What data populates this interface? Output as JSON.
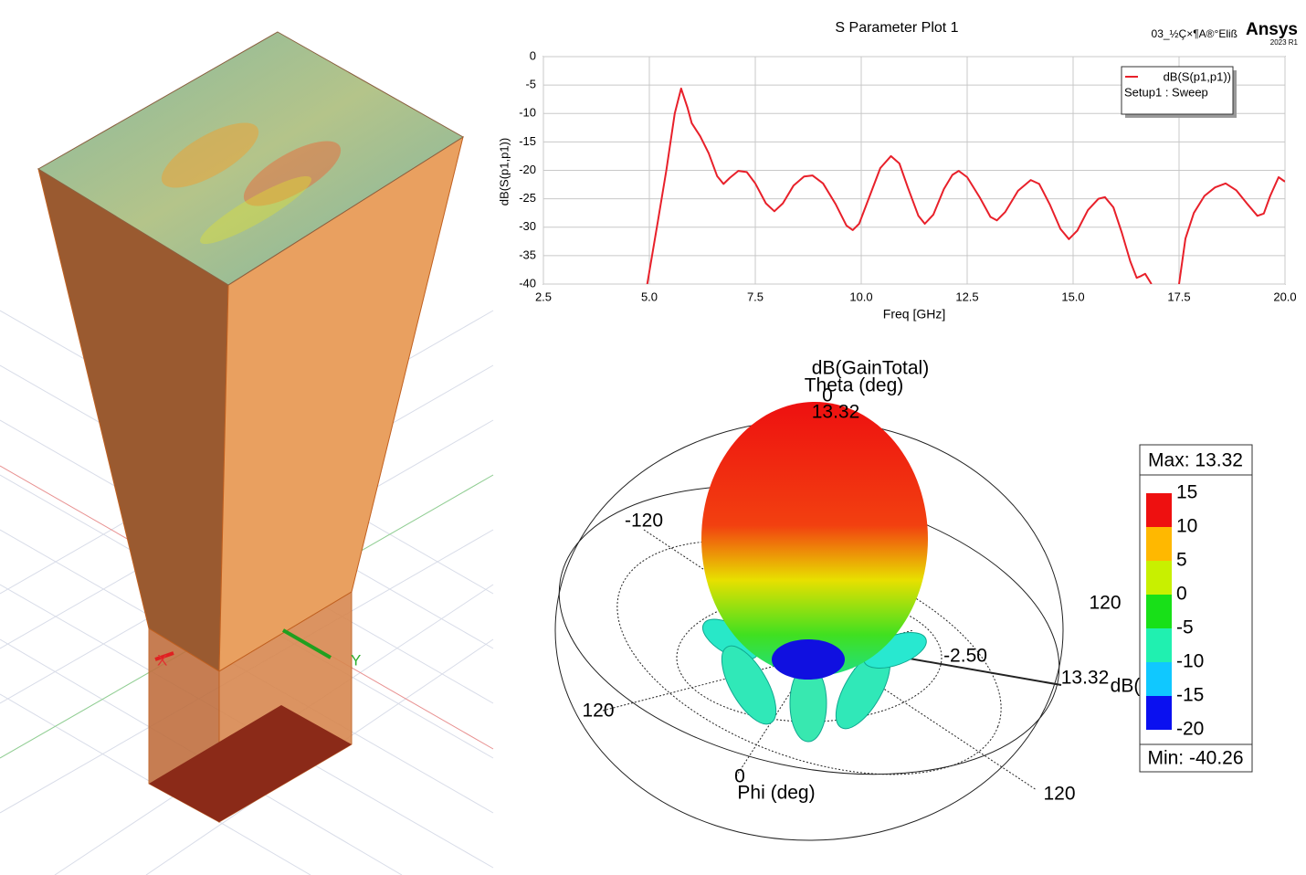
{
  "header": {
    "project": "03_½Ç×¶A®°Eliß",
    "brand": "Ansys",
    "version": "2023 R1"
  },
  "model_view": {
    "axes": [
      "X",
      "Y"
    ]
  },
  "chart_data": {
    "type": "line",
    "title": "S Parameter Plot 1",
    "x_label": "Freq [GHz]",
    "y_label": "dB(S(p1,p1))",
    "xlim": [
      2.5,
      20
    ],
    "xticks": [
      2.5,
      {
        "value": 5,
        "label": "5.0"
      },
      7.5,
      {
        "value": 10,
        "label": "10.0"
      },
      12.5,
      {
        "value": 15,
        "label": "15.0"
      },
      17.5,
      {
        "value": 20,
        "label": "20.0"
      }
    ],
    "ylim": [
      -40,
      0
    ],
    "yticks": [
      0,
      -5,
      -10,
      -15,
      -20,
      -25,
      -30,
      -35,
      -40
    ],
    "grid": true,
    "legend_position": "upper right",
    "legend_subtitle": "Setup1 : Sweep",
    "series": [
      {
        "name": "dB(S(p1,p1))",
        "color": "#e8202a",
        "x": [
          4.95,
          5.2,
          5.4,
          5.6,
          5.75,
          5.9,
          6.0,
          6.2,
          6.4,
          6.6,
          6.75,
          6.9,
          7.1,
          7.3,
          7.5,
          7.75,
          7.95,
          8.15,
          8.4,
          8.65,
          8.85,
          9.1,
          9.4,
          9.65,
          9.8,
          9.95,
          10.2,
          10.45,
          10.7,
          10.9,
          11.1,
          11.35,
          11.5,
          11.7,
          11.95,
          12.15,
          12.3,
          12.5,
          12.8,
          13.05,
          13.2,
          13.4,
          13.7,
          14.0,
          14.2,
          14.45,
          14.7,
          14.9,
          15.1,
          15.35,
          15.6,
          15.75,
          15.95,
          16.15,
          16.35,
          16.5,
          16.6,
          16.7,
          16.85,
          17.2,
          17.5,
          17.65,
          17.85,
          18.1,
          18.35,
          18.6,
          18.85,
          19.1,
          19.35,
          19.5,
          19.65,
          19.85,
          20.0
        ],
        "values": [
          -40,
          -29,
          -20,
          -10,
          -5.6,
          -9,
          -11.7,
          -14,
          -17,
          -21,
          -22.4,
          -21.3,
          -20.1,
          -20.3,
          -22.3,
          -25.8,
          -27.2,
          -25.8,
          -22.7,
          -21.1,
          -20.9,
          -22.3,
          -26,
          -29.7,
          -30.5,
          -29.4,
          -24.5,
          -19.6,
          -17.5,
          -18.8,
          -23,
          -28,
          -29.4,
          -27.8,
          -23.3,
          -20.8,
          -20.1,
          -21.2,
          -24.8,
          -28.2,
          -28.8,
          -27.3,
          -23.6,
          -21.7,
          -22.4,
          -26,
          -30.3,
          -32.1,
          -30.6,
          -27,
          -25,
          -24.7,
          -26.5,
          -31,
          -36,
          -38.9,
          -38.6,
          -38.2,
          -40,
          null,
          -40,
          -32,
          -27.5,
          -24.5,
          -23,
          -22.3,
          -23.5,
          -25.8,
          -28,
          -27.6,
          -24.5,
          -21.2,
          -22
        ]
      }
    ]
  },
  "radiation_plot": {
    "quantity": "dB(GainTotal)",
    "theta_label": "Theta (deg)",
    "theta_zero": "0",
    "peak": "13.32",
    "labels": [
      "-120",
      "120",
      "120",
      "120",
      "-2.50",
      "13.32",
      "dB(",
      "0"
    ],
    "phi_label": "Phi (deg)"
  },
  "color_legend": {
    "max": "Max: 13.32",
    "min": "Min: -40.26",
    "ticks": [
      "15",
      "10",
      "5",
      "0",
      "-5",
      "-10",
      "-15",
      "-20"
    ],
    "colors": [
      "#ee1010",
      "#ffb800",
      "#c8f000",
      "#18e018",
      "#20f0b0",
      "#10c8ff",
      "#0a10f0"
    ]
  }
}
